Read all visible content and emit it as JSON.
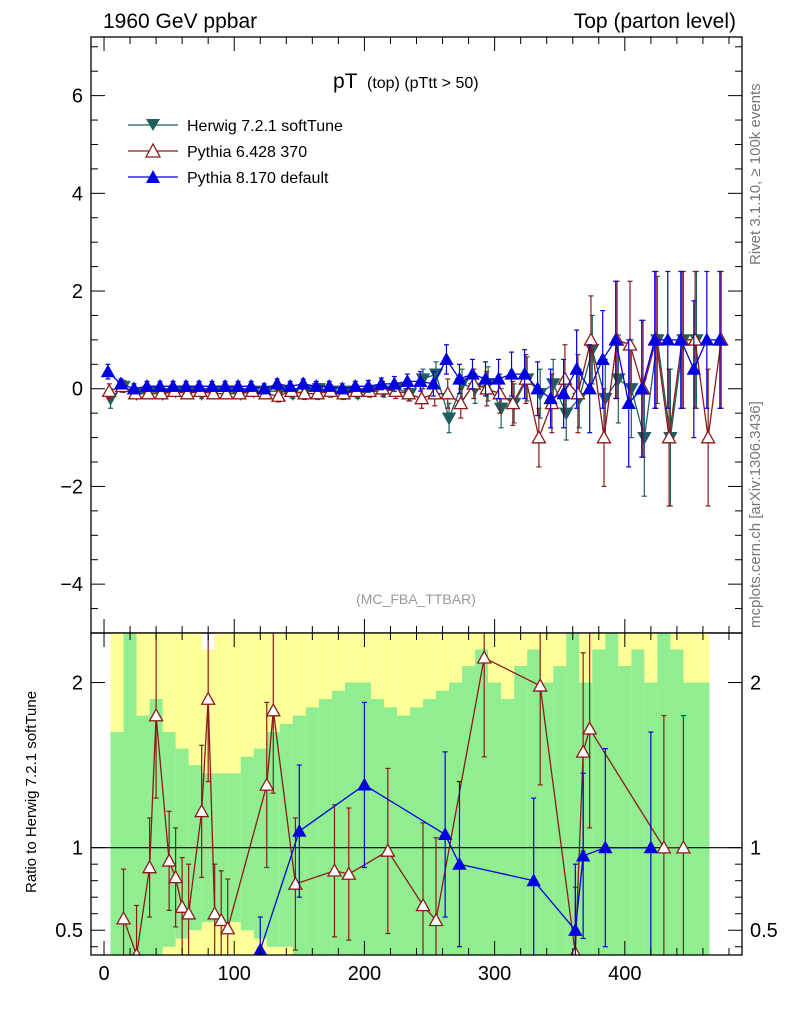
{
  "header": {
    "left": "1960 GeV ppbar",
    "right": "Top (parton level)"
  },
  "side": {
    "rivet": "Rivet 3.1.10, ≥ 100k events",
    "mcplots": "mcplots.cern.ch [arXiv:1306.3436]"
  },
  "plot_title": {
    "main": "pT",
    "sub": "(top) (pTtt > 50)"
  },
  "analysis": "(MC_FBA_TTBAR)",
  "ratio_ylabel": "Ratio to Herwig 7.2.1 softTune",
  "colors": {
    "herwig": "#1f5f5f",
    "pythia6": "#8b1a1a",
    "pythia8": "#0000e0",
    "band_green": "#90ee90",
    "band_yellow": "#ffff99"
  },
  "chart_data": [
    {
      "type": "line",
      "panel": "main",
      "title": "pT (top) (pTtt > 50)",
      "xlabel": "",
      "ylabel": "",
      "xlim": [
        -10,
        490
      ],
      "ylim": [
        -5,
        7.2
      ],
      "yticks": [
        -4,
        -2,
        0,
        2,
        4,
        6
      ],
      "xticks": [
        0,
        100,
        200,
        300,
        400
      ],
      "legend_position": "top-left",
      "series": [
        {
          "name": "Herwig 7.2.1 softTune",
          "marker": "triangle-down",
          "x": [
            5,
            15,
            25,
            35,
            45,
            55,
            65,
            75,
            85,
            95,
            105,
            115,
            125,
            135,
            145,
            155,
            165,
            175,
            185,
            195,
            205,
            215,
            225,
            235,
            245,
            255,
            265,
            275,
            285,
            295,
            305,
            315,
            325,
            335,
            345,
            355,
            365,
            375,
            385,
            395,
            405,
            415,
            425,
            435,
            445,
            455
          ],
          "y": [
            -0.2,
            0.05,
            -0.1,
            -0.05,
            -0.1,
            -0.05,
            -0.05,
            -0.1,
            -0.05,
            -0.05,
            -0.1,
            -0.05,
            -0.05,
            -0.05,
            -0.1,
            -0.05,
            0.0,
            -0.05,
            -0.05,
            -0.1,
            -0.05,
            -0.05,
            0.0,
            -0.1,
            0.2,
            0.3,
            -0.6,
            0.1,
            0.0,
            0.1,
            -0.4,
            -0.3,
            0.2,
            -0.1,
            0.1,
            -0.5,
            -0.2,
            0.8,
            -0.2,
            0.2,
            0.0,
            -1.0,
            1.0,
            -1.0,
            1.0,
            1.0
          ],
          "err": [
            0.2,
            0.12,
            0.1,
            0.1,
            0.1,
            0.1,
            0.1,
            0.1,
            0.1,
            0.1,
            0.1,
            0.1,
            0.1,
            0.1,
            0.1,
            0.1,
            0.1,
            0.1,
            0.1,
            0.1,
            0.1,
            0.12,
            0.12,
            0.15,
            0.2,
            0.25,
            0.3,
            0.3,
            0.3,
            0.35,
            0.4,
            0.4,
            0.45,
            0.5,
            0.5,
            0.55,
            0.6,
            0.7,
            0.8,
            0.9,
            1.0,
            1.2,
            1.3,
            1.4,
            1.4,
            1.4
          ]
        },
        {
          "name": "Pythia 6.428 370",
          "marker": "triangle-up-open",
          "x": [
            4,
            14,
            24,
            34,
            44,
            54,
            64,
            74,
            84,
            94,
            104,
            114,
            124,
            134,
            144,
            154,
            164,
            174,
            184,
            194,
            204,
            214,
            224,
            234,
            244,
            254,
            264,
            274,
            284,
            294,
            304,
            314,
            324,
            334,
            344,
            354,
            364,
            374,
            384,
            394,
            404,
            414,
            424,
            434,
            444,
            454,
            464,
            474
          ],
          "y": [
            -0.05,
            0.05,
            -0.1,
            -0.1,
            -0.1,
            -0.05,
            -0.1,
            -0.05,
            -0.1,
            -0.1,
            -0.1,
            -0.05,
            -0.1,
            -0.15,
            -0.05,
            -0.1,
            -0.1,
            -0.05,
            -0.1,
            -0.05,
            -0.05,
            0.0,
            -0.05,
            -0.1,
            -0.2,
            -0.1,
            -0.1,
            -0.3,
            0.1,
            0.0,
            -0.1,
            -0.3,
            0.2,
            -1.0,
            -0.3,
            0.2,
            -0.1,
            1.0,
            -1.0,
            1.0,
            0.9,
            0.0,
            1.0,
            -1.0,
            1.0,
            1.0,
            -1.0,
            1.0
          ],
          "err": [
            0.15,
            0.12,
            0.1,
            0.1,
            0.1,
            0.1,
            0.1,
            0.1,
            0.1,
            0.1,
            0.1,
            0.1,
            0.1,
            0.12,
            0.12,
            0.12,
            0.12,
            0.12,
            0.12,
            0.12,
            0.12,
            0.15,
            0.15,
            0.15,
            0.2,
            0.25,
            0.3,
            0.3,
            0.3,
            0.35,
            0.4,
            0.45,
            0.5,
            0.6,
            0.6,
            0.7,
            0.8,
            0.9,
            1.0,
            1.2,
            1.3,
            1.4,
            1.4,
            1.4,
            1.4,
            1.4,
            1.4,
            1.4
          ]
        },
        {
          "name": "Pythia 8.170 default",
          "marker": "triangle-up",
          "x": [
            3,
            13,
            23,
            33,
            43,
            53,
            63,
            73,
            83,
            93,
            103,
            113,
            123,
            133,
            143,
            153,
            163,
            173,
            183,
            193,
            203,
            213,
            223,
            233,
            243,
            253,
            263,
            273,
            283,
            293,
            303,
            313,
            323,
            333,
            343,
            353,
            363,
            373,
            383,
            393,
            403,
            413,
            423,
            433,
            443,
            453,
            463,
            473
          ],
          "y": [
            0.35,
            0.1,
            0.0,
            0.05,
            0.05,
            0.05,
            0.05,
            0.05,
            0.05,
            0.05,
            0.05,
            0.05,
            0.0,
            0.1,
            0.05,
            0.1,
            0.05,
            0.05,
            0.0,
            0.05,
            0.05,
            0.1,
            0.1,
            0.15,
            0.15,
            0.1,
            0.6,
            0.2,
            0.3,
            0.2,
            0.2,
            0.3,
            0.3,
            0.0,
            -0.2,
            -0.1,
            0.4,
            0.0,
            0.6,
            1.0,
            -0.3,
            0.0,
            1.0,
            1.0,
            1.0,
            0.4,
            1.0,
            1.0
          ],
          "err": [
            0.15,
            0.1,
            0.1,
            0.1,
            0.1,
            0.1,
            0.1,
            0.1,
            0.1,
            0.1,
            0.1,
            0.1,
            0.1,
            0.1,
            0.1,
            0.1,
            0.1,
            0.1,
            0.1,
            0.1,
            0.12,
            0.12,
            0.15,
            0.15,
            0.2,
            0.25,
            0.3,
            0.3,
            0.3,
            0.35,
            0.4,
            0.45,
            0.5,
            0.55,
            0.6,
            0.7,
            0.8,
            0.9,
            1.0,
            1.2,
            1.3,
            1.4,
            1.4,
            1.4,
            1.4,
            1.4,
            1.4,
            1.4
          ]
        }
      ]
    },
    {
      "type": "line",
      "panel": "ratio",
      "ylabel": "Ratio to Herwig 7.2.1 softTune",
      "xlim": [
        -10,
        490
      ],
      "ylim": [
        0.35,
        2.3
      ],
      "yticks": [
        0.5,
        1,
        2
      ],
      "xticks": [
        0,
        100,
        200,
        300,
        400
      ],
      "band_edges": [
        5,
        15,
        25,
        35,
        45,
        55,
        65,
        75,
        85,
        95,
        105,
        115,
        125,
        135,
        145,
        155,
        165,
        175,
        185,
        195,
        205,
        215,
        225,
        235,
        245,
        255,
        265,
        275,
        285,
        295,
        305,
        315,
        325,
        335,
        345,
        355,
        365,
        375,
        385,
        395,
        405,
        415,
        425,
        435,
        445,
        455,
        465
      ],
      "band_green_lo": [
        0.35,
        0.35,
        0.35,
        0.35,
        0.4,
        0.45,
        0.5,
        0.55,
        0.55,
        0.55,
        0.5,
        0.45,
        0.4,
        0.4,
        0.35,
        0.35,
        0.35,
        0.35,
        0.35,
        0.35,
        0.35,
        0.35,
        0.35,
        0.35,
        0.35,
        0.35,
        0.35,
        0.35,
        0.35,
        0.35,
        0.35,
        0.35,
        0.35,
        0.35,
        0.35,
        0.35,
        0.35,
        0.35,
        0.35,
        0.35,
        0.35,
        0.35,
        0.35,
        0.35,
        0.35,
        0.35
      ],
      "band_green_hi": [
        1.7,
        2.3,
        1.8,
        1.9,
        1.7,
        1.6,
        1.5,
        1.45,
        1.45,
        1.45,
        1.55,
        1.6,
        1.7,
        1.75,
        1.8,
        1.85,
        1.9,
        1.95,
        2.0,
        2.0,
        1.9,
        1.85,
        1.8,
        1.85,
        1.9,
        1.95,
        2.0,
        2.1,
        2.2,
        2.0,
        1.9,
        2.1,
        2.2,
        2.0,
        2.1,
        2.3,
        2.0,
        2.2,
        2.3,
        2.1,
        2.2,
        2.0,
        2.3,
        2.2,
        2.0,
        2.0
      ],
      "band_yellow_hi": [
        2.3,
        2.3,
        2.3,
        2.3,
        2.3,
        2.3,
        2.3,
        2.2,
        2.3,
        2.3,
        2.3,
        2.3,
        2.3,
        2.3,
        2.3,
        2.3,
        2.3,
        2.3,
        2.3,
        2.3,
        2.3,
        2.3,
        2.3,
        2.3,
        2.3,
        2.3,
        2.3,
        2.3,
        2.3,
        2.3,
        2.3,
        2.3,
        2.3,
        2.3,
        2.3,
        2.3,
        2.3,
        2.3,
        2.3,
        2.3,
        2.3,
        2.3,
        2.3,
        2.3,
        2.3,
        2.3
      ],
      "series": [
        {
          "name": "Pythia 6.428 370",
          "marker": "triangle-up-open",
          "x": [
            15,
            25,
            35,
            40,
            50,
            55,
            60,
            65,
            75,
            80,
            85,
            90,
            95,
            125,
            130,
            147,
            177,
            188,
            218,
            245,
            255,
            292,
            335,
            362,
            368,
            373,
            430,
            445
          ],
          "y": [
            0.57,
            0.35,
            0.88,
            1.8,
            0.92,
            0.82,
            0.64,
            0.6,
            1.22,
            1.9,
            0.6,
            0.56,
            0.51,
            1.38,
            1.83,
            0.78,
            0.86,
            0.84,
            0.98,
            0.65,
            0.56,
            2.15,
            1.98,
            0.36,
            1.58,
            1.72,
            1.0,
            1.0
          ],
          "err": [
            0.3,
            0.3,
            0.3,
            0.5,
            0.3,
            0.3,
            0.3,
            0.3,
            0.4,
            0.5,
            0.3,
            0.3,
            0.3,
            0.5,
            0.5,
            0.4,
            0.4,
            0.4,
            0.5,
            0.5,
            0.5,
            0.6,
            0.6,
            0.4,
            0.6,
            0.6,
            0.8,
            0.8
          ]
        },
        {
          "name": "Pythia 8.170 default",
          "marker": "triangle-up",
          "x": [
            120,
            150,
            200,
            262,
            273,
            330,
            362,
            368,
            385,
            420
          ],
          "y": [
            0.38,
            1.1,
            1.38,
            1.08,
            0.9,
            0.8,
            0.5,
            0.95,
            1.0,
            1.0
          ],
          "err": [
            0.2,
            0.4,
            0.5,
            0.5,
            0.5,
            0.5,
            0.4,
            0.5,
            0.6,
            0.7
          ]
        }
      ]
    }
  ]
}
